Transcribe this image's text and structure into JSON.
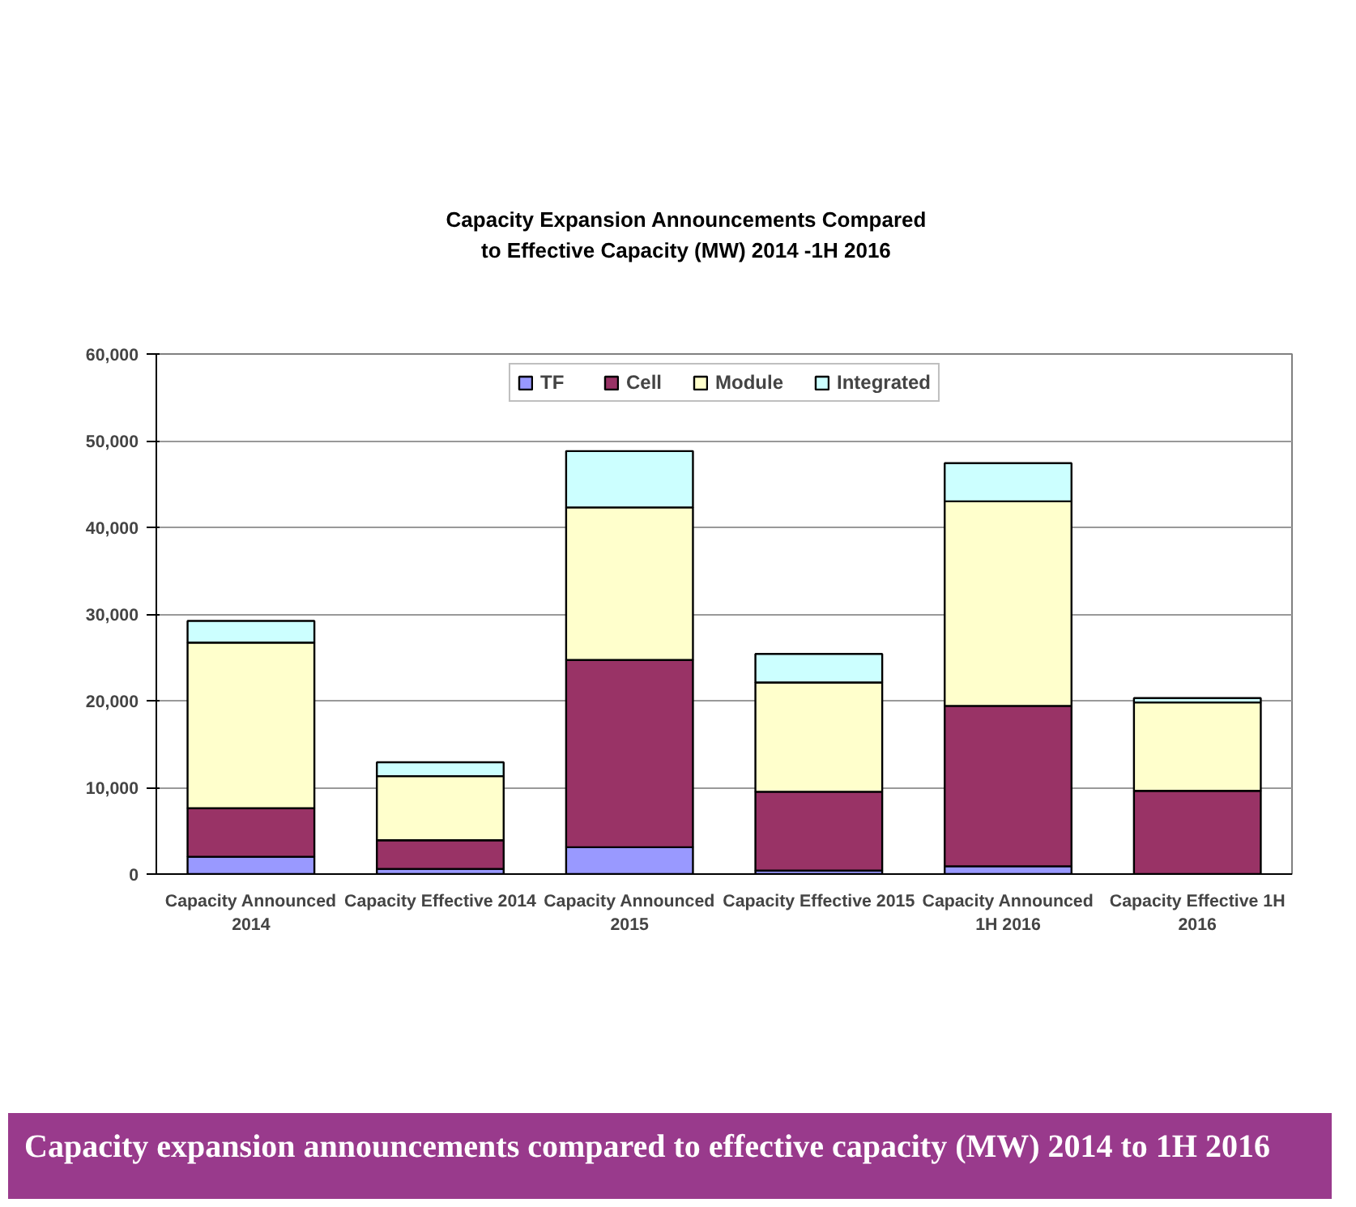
{
  "chart_data": {
    "type": "bar",
    "stacked": true,
    "title": "Capacity Expansion Announcements Compared\nto Effective Capacity (MW) 2014 -1H 2016",
    "categories": [
      "Capacity Announced\n2014",
      "Capacity Effective 2014",
      "Capacity Announced\n2015",
      "Capacity Effective 2015",
      "Capacity Announced\n1H 2016",
      "Capacity Effective 1H\n2016"
    ],
    "series": [
      {
        "name": "TF",
        "color": "#9999ff",
        "values": [
          2000,
          600,
          3100,
          400,
          900,
          0
        ]
      },
      {
        "name": "Cell",
        "color": "#993366",
        "values": [
          5600,
          3300,
          21600,
          9100,
          18500,
          9600
        ]
      },
      {
        "name": "Module",
        "color": "#ffffcc",
        "values": [
          19100,
          7400,
          17600,
          12600,
          23600,
          10200
        ]
      },
      {
        "name": "Integrated",
        "color": "#ccffff",
        "values": [
          2500,
          1600,
          6500,
          3300,
          4400,
          500
        ]
      }
    ],
    "ylim": [
      0,
      60000
    ],
    "yticks": [
      0,
      {
        "value": 10000,
        "label": "10,000"
      },
      {
        "value": 20000,
        "label": "20,000"
      },
      {
        "value": 30000,
        "label": "30,000"
      },
      {
        "value": 40000,
        "label": "40,000"
      },
      {
        "value": 50000,
        "label": "50,000"
      },
      {
        "value": 60000,
        "label": "60,000"
      }
    ],
    "grid": "y",
    "legend": "top",
    "annotations": [
      "Capacity expansion announcements compared to effective capacity (MW) 2014 to 1H 2016"
    ]
  }
}
